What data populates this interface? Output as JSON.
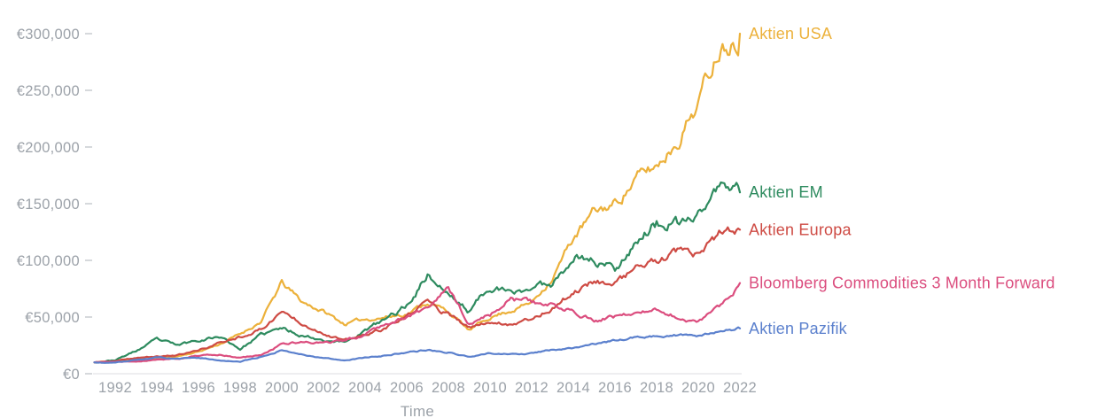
{
  "chart": {
    "axis_color": "#E3E4E6",
    "tick_mark_color": "#C9CCD0",
    "axis_text_color": "#9CA2A9",
    "background_color": "#FFFFFF"
  },
  "chart_data": {
    "type": "line",
    "title": "",
    "subtitle": "",
    "xlabel": "Time",
    "ylabel": "",
    "currency": "EUR",
    "grid": false,
    "legend_position": "right-of-line-ends",
    "x_years": [
      1991,
      1992,
      1993,
      1994,
      1995,
      1996,
      1997,
      1998,
      1999,
      2000,
      2001,
      2002,
      2003,
      2004,
      2005,
      2006,
      2007,
      2008,
      2009,
      2010,
      2011,
      2012,
      2013,
      2014,
      2015,
      2016,
      2017,
      2018,
      2019,
      2020,
      2021,
      2022
    ],
    "x_tick_years": [
      1992,
      1994,
      1996,
      1998,
      2000,
      2002,
      2004,
      2006,
      2008,
      2010,
      2012,
      2014,
      2016,
      2018,
      2020,
      2022
    ],
    "x_tick_labels": [
      "1992",
      "1994",
      "1996",
      "1998",
      "2000",
      "2002",
      "2004",
      "2006",
      "2008",
      "2010",
      "2012",
      "2014",
      "2016",
      "2018",
      "2020",
      "2022"
    ],
    "ylim": [
      0,
      300000
    ],
    "y_tick_values": [
      0,
      50000,
      100000,
      150000,
      200000,
      250000,
      300000
    ],
    "y_tick_labels": [
      "€0",
      "€50,000",
      "€100,000",
      "€150,000",
      "€200,000",
      "€250,000",
      "€300,000"
    ],
    "series": [
      {
        "name": "Aktien USA",
        "color": "#ECB13B",
        "values": [
          10000,
          11500,
          12500,
          13500,
          15500,
          19500,
          26000,
          35000,
          46000,
          80000,
          63000,
          55000,
          44000,
          48000,
          50000,
          53000,
          63000,
          55000,
          38000,
          50000,
          56000,
          63000,
          85000,
          120000,
          142000,
          150000,
          172000,
          183000,
          207000,
          240000,
          290000,
          300000
        ]
      },
      {
        "name": "Aktien EM",
        "color": "#2E8B5F",
        "values": [
          10000,
          12000,
          20000,
          30000,
          25000,
          30000,
          33000,
          22000,
          34000,
          40000,
          34000,
          30000,
          28000,
          38000,
          48000,
          60000,
          88000,
          70000,
          55000,
          78000,
          70000,
          76000,
          80000,
          105000,
          100000,
          93000,
          118000,
          132000,
          130000,
          140000,
          165000,
          160000
        ]
      },
      {
        "name": "Aktien Europa",
        "color": "#CE4B44",
        "values": [
          10000,
          10800,
          14000,
          15000,
          16500,
          20500,
          27000,
          33000,
          39000,
          55000,
          45000,
          36000,
          29000,
          34000,
          40000,
          50000,
          64000,
          52000,
          40000,
          46000,
          44000,
          49000,
          58000,
          72000,
          82000,
          80000,
          94000,
          98000,
          106000,
          104000,
          121000,
          127000
        ]
      },
      {
        "name": "Bloomberg Commodities 3 Month Forward",
        "color": "#DB4D7E",
        "values": [
          10000,
          10500,
          11000,
          12500,
          13500,
          16000,
          16500,
          14000,
          16500,
          26000,
          28000,
          27000,
          29000,
          35000,
          45000,
          50000,
          58000,
          74000,
          44000,
          52000,
          66000,
          63000,
          60000,
          56000,
          48000,
          50000,
          53000,
          56000,
          50000,
          45000,
          58000,
          80000
        ]
      },
      {
        "name": "Aktien Pazifik",
        "color": "#5B80CD",
        "values": [
          10000,
          9500,
          12000,
          14500,
          13000,
          14000,
          12000,
          10500,
          15000,
          21000,
          17000,
          14000,
          12000,
          14000,
          16000,
          19000,
          21000,
          19000,
          15000,
          18000,
          17500,
          18000,
          21000,
          23000,
          26000,
          29000,
          32000,
          33000,
          34000,
          33000,
          37000,
          40000
        ]
      }
    ]
  }
}
